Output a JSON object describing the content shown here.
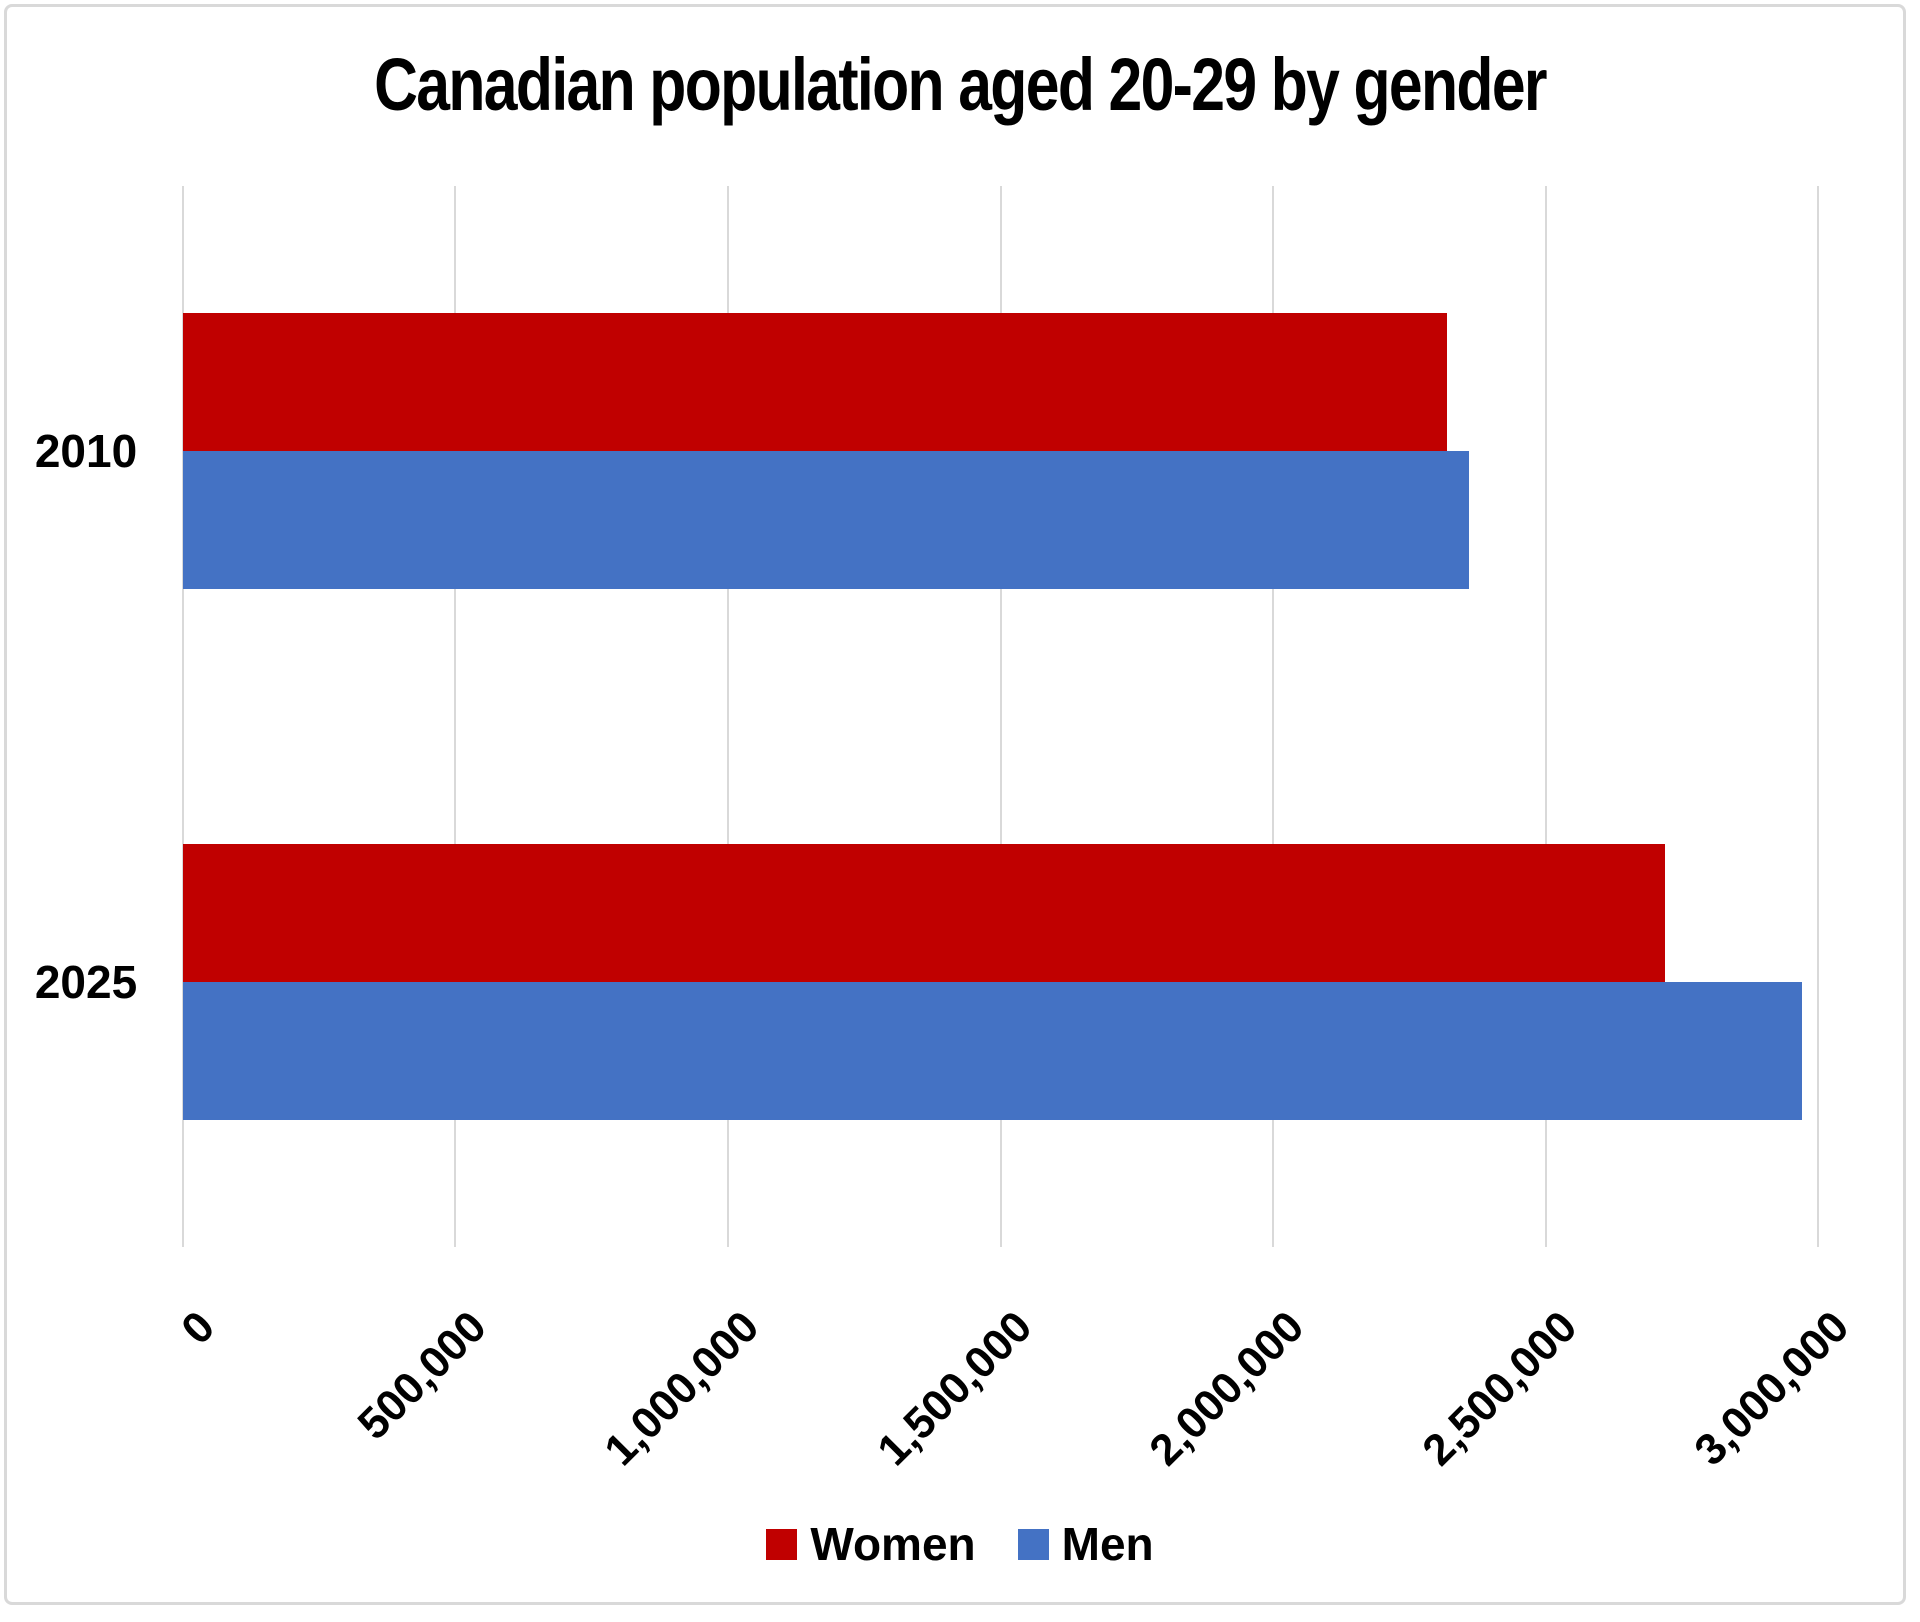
{
  "chart_data": {
    "type": "bar",
    "orientation": "horizontal",
    "title": "Canadian population aged 20-29 by gender",
    "categories": [
      "2010",
      "2025"
    ],
    "series": [
      {
        "name": "Women",
        "color": "#C00000",
        "values": [
          2320000,
          2720000
        ]
      },
      {
        "name": "Men",
        "color": "#4472C4",
        "values": [
          2360000,
          2970000
        ]
      }
    ],
    "xlim": [
      0,
      3000000
    ],
    "x_ticks": [
      {
        "value": 0,
        "label": "0"
      },
      {
        "value": 500000,
        "label": "500,000"
      },
      {
        "value": 1000000,
        "label": "1,000,000"
      },
      {
        "value": 1500000,
        "label": "1,500,000"
      },
      {
        "value": 2000000,
        "label": "2,000,000"
      },
      {
        "value": 2500000,
        "label": "2,500,000"
      },
      {
        "value": 3000000,
        "label": "3,000,000"
      }
    ],
    "tick_label_rotation_deg": 45,
    "grid": true,
    "gridline_color": "#D9D9D9",
    "frame_border_color": "#D9D9D9",
    "text_color": "#000000",
    "legend_position": "bottom",
    "xlabel": "",
    "ylabel": ""
  }
}
